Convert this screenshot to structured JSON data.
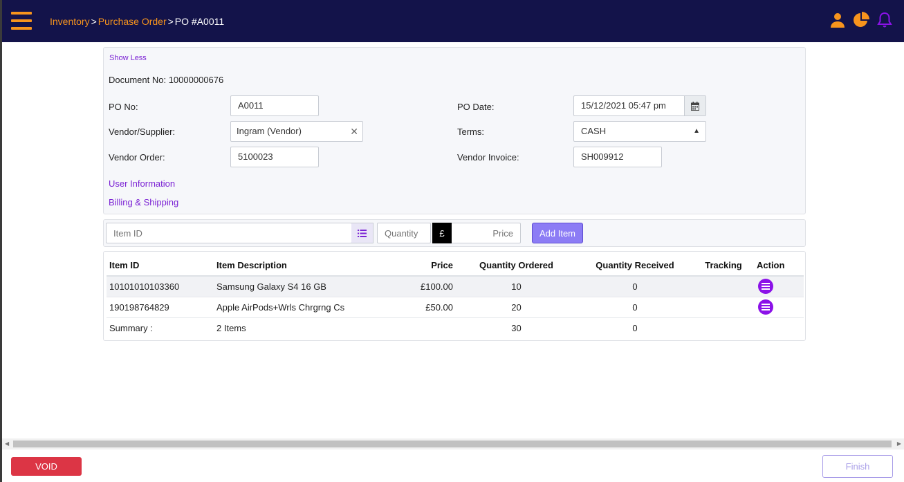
{
  "colors": {
    "header_bg": "#13134a",
    "accent_orange": "#f7941d",
    "accent_purple": "#7b22d4",
    "void_red": "#dc3545"
  },
  "header": {
    "breadcrumb": {
      "inventory": "Inventory",
      "purchase_order": "Purchase Order",
      "current": "PO #A0011",
      "sep": ">"
    },
    "icons": [
      "user-icon",
      "pie-chart-icon",
      "bell-icon"
    ]
  },
  "form": {
    "show_less": "Show Less",
    "document_no": "Document No: 10000000676",
    "po_no": {
      "label": "PO No:",
      "value": "A0011"
    },
    "vendor": {
      "label": "Vendor/Supplier:",
      "value": "Ingram (Vendor)",
      "clear": "✕"
    },
    "vendor_order": {
      "label": "Vendor Order:",
      "value": "5100023"
    },
    "po_date": {
      "label": "PO Date:",
      "value": "15/12/2021 05:47 pm"
    },
    "terms": {
      "label": "Terms:",
      "value": "CASH"
    },
    "vendor_invoice": {
      "label": "Vendor Invoice:",
      "value": "SH009912"
    },
    "user_information": "User Information",
    "billing_shipping": "Billing & Shipping"
  },
  "add_item": {
    "item_id_placeholder": "Item ID",
    "quantity_placeholder": "Quantity",
    "currency": "£",
    "price_placeholder": "Price",
    "add_label": "Add Item"
  },
  "table": {
    "headers": {
      "item_id": "Item ID",
      "description": "Item Description",
      "price": "Price",
      "qty_ordered": "Quantity Ordered",
      "qty_received": "Quantity Received",
      "tracking": "Tracking",
      "action": "Action"
    },
    "rows": [
      {
        "item_id": "10101010103360",
        "description": "Samsung Galaxy S4 16 GB",
        "price": "£100.00",
        "qty_ordered": "10",
        "qty_received": "0",
        "tracking": ""
      },
      {
        "item_id": "190198764829",
        "description": "Apple AirPods+Wrls Chrgrng Cs",
        "price": "£50.00",
        "qty_ordered": "20",
        "qty_received": "0",
        "tracking": ""
      }
    ],
    "summary": {
      "label": "Summary :",
      "items": "2 Items",
      "qty_ordered": "30",
      "qty_received": "0"
    }
  },
  "footer": {
    "void_label": "VOID",
    "finish_label": "Finish"
  }
}
